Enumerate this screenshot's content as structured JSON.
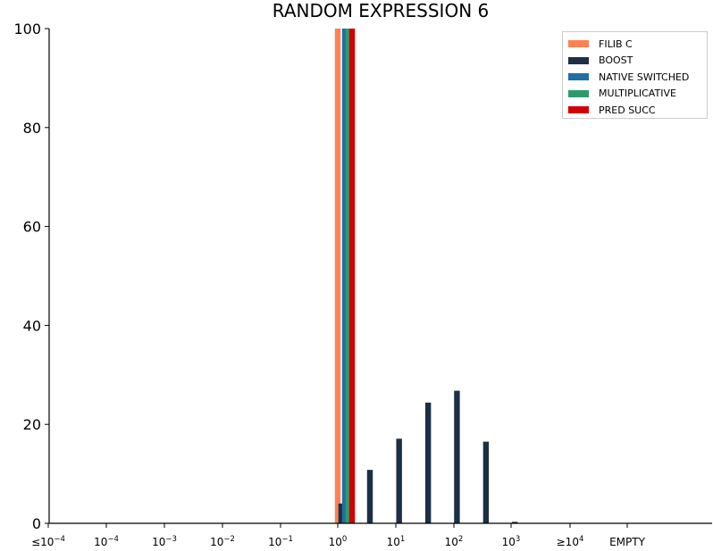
{
  "chart_data": {
    "type": "bar",
    "title": "RANDOM EXPRESSION 6",
    "xlabel": "",
    "ylabel": "",
    "ylim": [
      0,
      100
    ],
    "yticks": [
      0,
      20,
      40,
      60,
      80,
      100
    ],
    "categories": [
      "≤10^-4",
      "10^-4",
      "10^-3",
      "10^-2",
      "10^-1",
      "10^0",
      "10^1",
      "10^2",
      "10^3",
      "≥10^4",
      "EMPTY"
    ],
    "tick_labels": [
      {
        "base": "≤10",
        "exp": "−4"
      },
      {
        "base": "10",
        "exp": "−4"
      },
      {
        "base": "10",
        "exp": "−3"
      },
      {
        "base": "10",
        "exp": "−2"
      },
      {
        "base": "10",
        "exp": "−1"
      },
      {
        "base": "10",
        "exp": "0"
      },
      {
        "base": "10",
        "exp": "1"
      },
      {
        "base": "10",
        "exp": "2"
      },
      {
        "base": "10",
        "exp": "3"
      },
      {
        "base": "≥10",
        "exp": "4"
      },
      {
        "base": "EMPTY",
        "exp": ""
      }
    ],
    "legend_position": "top-right",
    "grid": false,
    "series": [
      {
        "name": "FILIB C",
        "color": "#ff8153",
        "bars": [
          {
            "x": 1.0,
            "value": 100
          }
        ]
      },
      {
        "name": "BOOST",
        "color": "#1b2f45",
        "bars": [
          {
            "x": 1.15,
            "value": 4.0
          },
          {
            "x": 3.6,
            "value": 10.8
          },
          {
            "x": 11.5,
            "value": 17.1
          },
          {
            "x": 36.5,
            "value": 24.4
          },
          {
            "x": 115,
            "value": 26.8
          },
          {
            "x": 365,
            "value": 16.5
          },
          {
            "x": 1150,
            "value": 0.3
          }
        ]
      },
      {
        "name": "NATIVE SWITCHED",
        "color": "#1e6fa5",
        "bars": [
          {
            "x": 1.33,
            "value": 100
          }
        ]
      },
      {
        "name": "MULTIPLICATIVE",
        "color": "#2e9a6c",
        "bars": [
          {
            "x": 1.53,
            "value": 100
          }
        ]
      },
      {
        "name": "PRED SUCC",
        "color": "#d10000",
        "bars": [
          {
            "x": 1.77,
            "value": 100
          }
        ]
      }
    ]
  }
}
